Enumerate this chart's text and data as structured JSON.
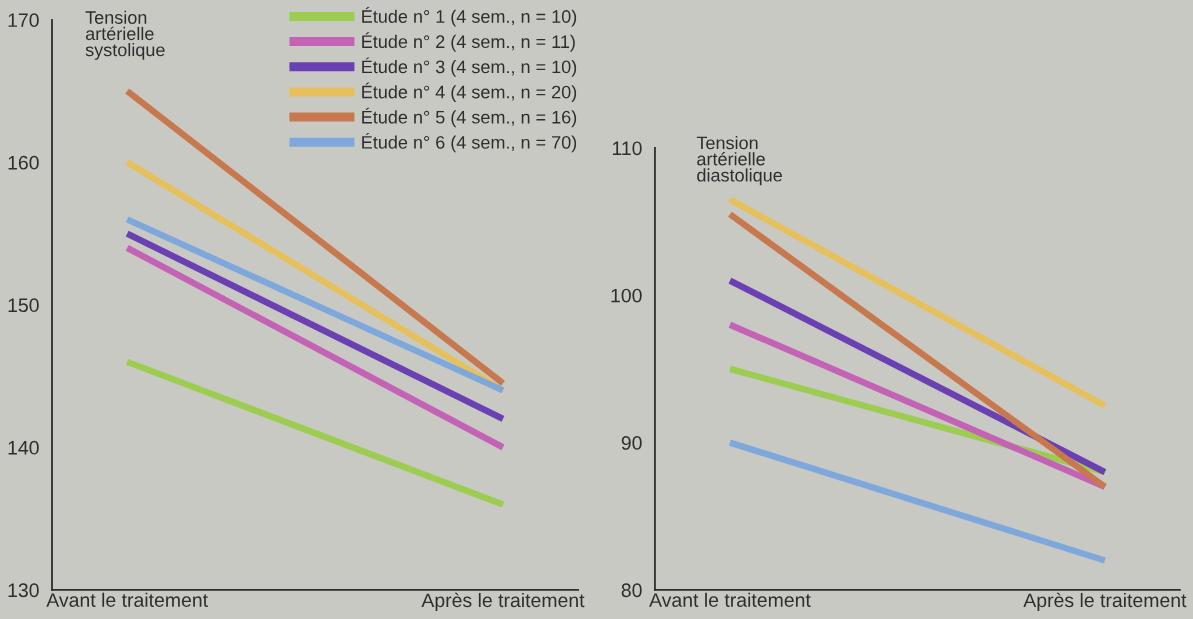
{
  "chart_data": [
    {
      "type": "line",
      "ylabel": "Tension\nartérielle\nsystolique",
      "categories": [
        "Avant le traitement",
        "Après le traitement"
      ],
      "ylim": [
        130,
        170
      ],
      "yticks": [
        130,
        140,
        150,
        160,
        170
      ],
      "grid": false,
      "legend": "top right",
      "series": [
        {
          "name": "Étude n° 1 (4 sem., n = 10)",
          "color": "#9ccc50",
          "values": [
            146,
            136
          ]
        },
        {
          "name": "Étude n° 2 (4 sem., n = 11)",
          "color": "#c462b6",
          "values": [
            154,
            140
          ]
        },
        {
          "name": "Étude n° 3 (4 sem., n = 10)",
          "color": "#6a40b2",
          "values": [
            155,
            142
          ]
        },
        {
          "name": "Étude n° 4 (4 sem., n = 20)",
          "color": "#e6c05a",
          "values": [
            160,
            144
          ]
        },
        {
          "name": "Étude n° 5 (4 sem., n = 16)",
          "color": "#c8784e",
          "values": [
            165,
            144.5
          ]
        },
        {
          "name": "Étude n° 6 (4 sem., n = 70)",
          "color": "#7ea8dc",
          "values": [
            156,
            144
          ]
        }
      ]
    },
    {
      "type": "line",
      "ylabel": "Tension\nartérielle\ndiastolique",
      "categories": [
        "Avant le traitement",
        "Après le traitement"
      ],
      "ylim": [
        80,
        110
      ],
      "yticks": [
        80,
        90,
        100,
        110
      ],
      "grid": false,
      "series": [
        {
          "color": "#9ccc50",
          "values": [
            95,
            88
          ]
        },
        {
          "color": "#c462b6",
          "values": [
            98,
            87
          ]
        },
        {
          "color": "#6a40b2",
          "values": [
            101,
            88
          ]
        },
        {
          "color": "#e6c05a",
          "values": [
            106.5,
            92.5
          ]
        },
        {
          "color": "#c8784e",
          "values": [
            105.5,
            87
          ]
        },
        {
          "color": "#7ea8dc",
          "values": [
            90,
            82
          ]
        }
      ]
    }
  ]
}
